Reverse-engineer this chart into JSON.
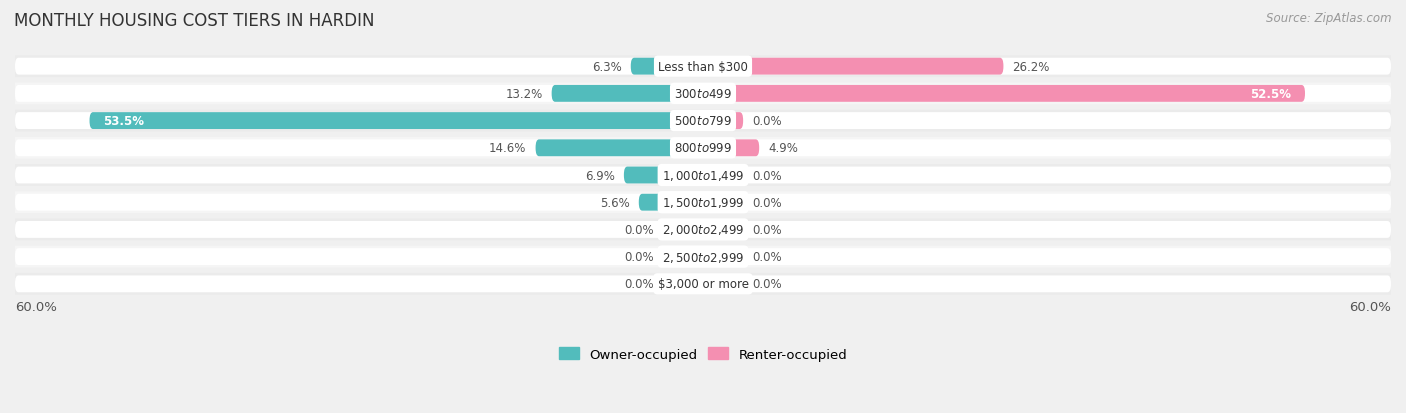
{
  "title": "MONTHLY HOUSING COST TIERS IN HARDIN",
  "source": "Source: ZipAtlas.com",
  "categories": [
    "Less than $300",
    "$300 to $499",
    "$500 to $799",
    "$800 to $999",
    "$1,000 to $1,499",
    "$1,500 to $1,999",
    "$2,000 to $2,499",
    "$2,500 to $2,999",
    "$3,000 or more"
  ],
  "owner_values": [
    6.3,
    13.2,
    53.5,
    14.6,
    6.9,
    5.6,
    0.0,
    0.0,
    0.0
  ],
  "renter_values": [
    26.2,
    52.5,
    0.0,
    4.9,
    0.0,
    0.0,
    0.0,
    0.0,
    0.0
  ],
  "owner_color": "#52bcbc",
  "renter_color": "#f48fb1",
  "renter_color_dark": "#e0608a",
  "background_color": "#f0f0f0",
  "bar_bg_color": "#ffffff",
  "xlim": 60.0,
  "min_bar_width": 3.5,
  "label_outside_color": "#555555",
  "label_inside_color": "#ffffff",
  "title_fontsize": 12,
  "source_fontsize": 8.5,
  "tick_fontsize": 9.5,
  "bar_label_fontsize": 8.5,
  "cat_label_fontsize": 8.5,
  "legend_fontsize": 9.5,
  "bar_height": 0.62,
  "bar_gap": 0.18,
  "row_bg_color": "#e8e8e8"
}
